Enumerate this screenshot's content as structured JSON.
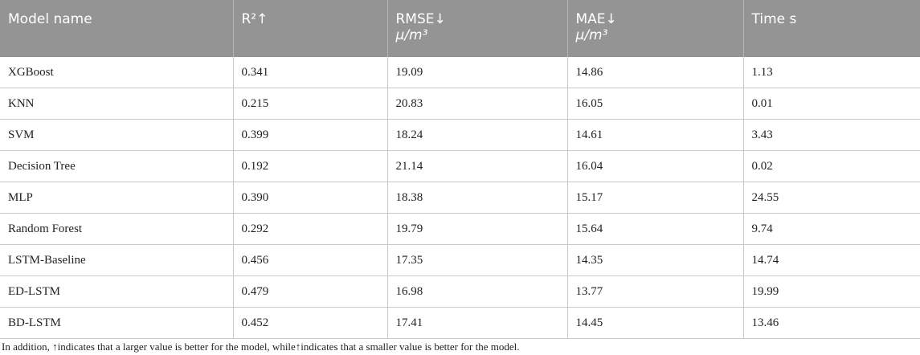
{
  "table": {
    "header": [
      {
        "label": "Model name"
      },
      {
        "label": "R²↑"
      },
      {
        "label": "RMSE↓",
        "unit": "μ/m³"
      },
      {
        "label": "MAE↓",
        "unit": "μ/m³"
      },
      {
        "label": "Time s"
      }
    ],
    "rows": [
      [
        "XGBoost",
        "0.341",
        "19.09",
        "14.86",
        "1.13"
      ],
      [
        "KNN",
        "0.215",
        "20.83",
        "16.05",
        "0.01"
      ],
      [
        "SVM",
        "0.399",
        "18.24",
        "14.61",
        "3.43"
      ],
      [
        "Decision Tree",
        "0.192",
        "21.14",
        "16.04",
        "0.02"
      ],
      [
        "MLP",
        "0.390",
        "18.38",
        "15.17",
        "24.55"
      ],
      [
        "Random Forest",
        "0.292",
        "19.79",
        "15.64",
        "9.74"
      ],
      [
        "LSTM-Baseline",
        "0.456",
        "17.35",
        "14.35",
        "14.74"
      ],
      [
        "ED-LSTM",
        "0.479",
        "16.98",
        "13.77",
        "19.99"
      ],
      [
        "BD-LSTM",
        "0.452",
        "17.41",
        "14.45",
        "13.46"
      ]
    ],
    "footnote": "In addition, ↑indicates that a larger value is better for the model, while↑indicates that a smaller value is better for the model."
  }
}
